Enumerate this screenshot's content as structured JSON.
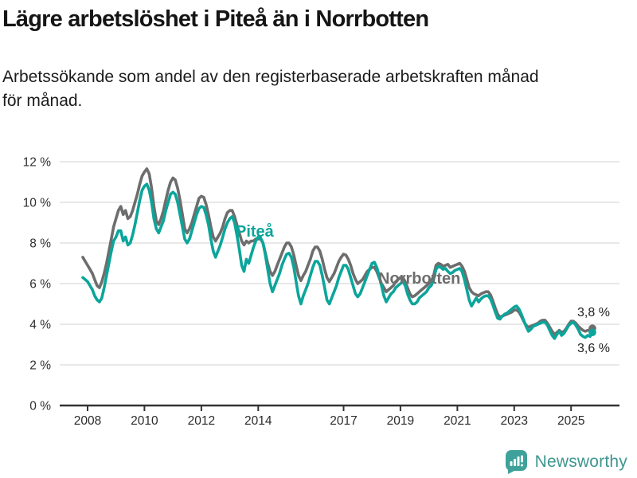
{
  "header": {
    "title": "Lägre arbetslöshet i Piteå än i Norrbotten",
    "subtitle_lines": [
      "Arbetssökande som andel av den registerbaserade arbetskraften månad",
      "för månad."
    ]
  },
  "footer": {
    "brand": "Newsworthy",
    "brand_color": "#3e968f"
  },
  "chart_data": {
    "type": "line",
    "title": "Lägre arbetslöshet i Piteå än i Norrbotten",
    "subtitle": "Arbetssökande som andel av den registerbaserade arbetskraften månad för månad.",
    "frequency": "monthly",
    "x_start": {
      "year": 2007,
      "month": 11
    },
    "x_end": {
      "year": 2025,
      "month": 10
    },
    "x_ticks": [
      2008,
      2010,
      2012,
      2014,
      2017,
      2019,
      2021,
      2023,
      2025
    ],
    "y_ticks": [
      0,
      2,
      4,
      6,
      8,
      10,
      12
    ],
    "y_tick_suffix": " %",
    "ylim": [
      0,
      12.5
    ],
    "grid": "horizontal",
    "legend_position": "inline-labels",
    "axis_color": "#333333",
    "gridline_color": "#dbdbdb",
    "series": [
      {
        "name": "Norrbotten",
        "color": "#6d6d6d",
        "end_label": "3,8 %",
        "end_value": 3.8,
        "values": [
          7.3,
          7.1,
          6.9,
          6.7,
          6.5,
          6.2,
          5.9,
          5.8,
          6.1,
          6.5,
          7.0,
          7.6,
          8.2,
          8.8,
          9.2,
          9.6,
          9.8,
          9.4,
          9.6,
          9.2,
          9.3,
          9.6,
          10.0,
          10.4,
          10.9,
          11.3,
          11.5,
          11.65,
          11.4,
          10.7,
          9.8,
          9.1,
          8.9,
          9.2,
          9.6,
          10.1,
          10.6,
          11.0,
          11.2,
          11.1,
          10.7,
          10.1,
          9.4,
          8.7,
          8.5,
          8.7,
          9.0,
          9.4,
          9.8,
          10.2,
          10.3,
          10.25,
          9.9,
          9.4,
          8.8,
          8.3,
          8.1,
          8.3,
          8.5,
          8.8,
          9.2,
          9.5,
          9.6,
          9.6,
          9.3,
          8.9,
          8.5,
          8.1,
          7.9,
          8.1,
          8.0,
          8.1,
          8.1,
          8.2,
          8.2,
          8.2,
          8.0,
          7.5,
          7.0,
          6.6,
          6.4,
          6.6,
          6.9,
          7.2,
          7.5,
          7.8,
          8.0,
          8.0,
          7.8,
          7.4,
          6.9,
          6.4,
          6.15,
          6.4,
          6.6,
          6.9,
          7.2,
          7.6,
          7.8,
          7.8,
          7.6,
          7.2,
          6.7,
          6.3,
          6.1,
          6.3,
          6.5,
          6.8,
          7.1,
          7.3,
          7.45,
          7.4,
          7.2,
          6.9,
          6.5,
          6.2,
          6.0,
          6.1,
          6.2,
          6.4,
          6.6,
          6.7,
          6.8,
          6.8,
          6.6,
          6.3,
          6.0,
          5.8,
          5.6,
          5.7,
          5.8,
          5.9,
          6.1,
          6.2,
          6.3,
          6.3,
          6.1,
          5.8,
          5.5,
          5.35,
          5.4,
          5.5,
          5.6,
          5.7,
          5.8,
          5.9,
          6.0,
          6.1,
          6.4,
          6.9,
          7.0,
          6.95,
          6.85,
          6.9,
          6.95,
          6.8,
          6.85,
          6.9,
          6.95,
          7.0,
          6.85,
          6.6,
          6.2,
          5.8,
          5.6,
          5.5,
          5.45,
          5.4,
          5.5,
          5.55,
          5.6,
          5.6,
          5.45,
          5.15,
          4.8,
          4.5,
          4.35,
          4.4,
          4.45,
          4.5,
          4.55,
          4.6,
          4.7,
          4.7,
          4.6,
          4.4,
          4.15,
          3.95,
          3.85,
          3.9,
          3.95,
          4.0,
          4.05,
          4.15,
          4.2,
          4.2,
          4.05,
          3.85,
          3.65,
          3.5,
          3.6,
          3.7,
          3.6,
          3.65,
          3.8,
          4.0,
          4.15,
          4.15,
          4.05,
          3.9,
          3.8,
          3.7,
          3.65,
          3.7,
          3.7,
          3.8
        ]
      },
      {
        "name": "Piteå",
        "color": "#0ba59b",
        "end_label": "3,6 %",
        "end_value": 3.6,
        "values": [
          6.3,
          6.2,
          6.1,
          5.9,
          5.7,
          5.4,
          5.2,
          5.1,
          5.3,
          5.8,
          6.4,
          7.0,
          7.6,
          8.1,
          8.3,
          8.6,
          8.6,
          8.1,
          8.3,
          7.9,
          8.0,
          8.4,
          8.9,
          9.5,
          10.1,
          10.6,
          10.8,
          10.9,
          10.6,
          10.0,
          9.2,
          8.7,
          8.5,
          8.8,
          9.1,
          9.6,
          10.0,
          10.4,
          10.5,
          10.4,
          10.0,
          9.4,
          8.8,
          8.2,
          8.0,
          8.2,
          8.6,
          9.0,
          9.4,
          9.7,
          9.8,
          9.75,
          9.4,
          8.9,
          8.2,
          7.6,
          7.3,
          7.6,
          7.9,
          8.3,
          8.7,
          9.0,
          9.2,
          9.3,
          9.0,
          8.4,
          7.7,
          6.9,
          6.6,
          7.2,
          7.0,
          7.4,
          7.8,
          8.1,
          8.3,
          8.25,
          8.0,
          7.4,
          6.7,
          6.0,
          5.6,
          5.9,
          6.2,
          6.5,
          6.9,
          7.2,
          7.45,
          7.5,
          7.3,
          6.8,
          6.1,
          5.4,
          5.0,
          5.4,
          5.7,
          6.0,
          6.4,
          6.8,
          7.1,
          7.1,
          6.9,
          6.4,
          5.8,
          5.2,
          5.0,
          5.3,
          5.6,
          5.9,
          6.3,
          6.6,
          6.9,
          6.9,
          6.7,
          6.3,
          5.9,
          5.5,
          5.35,
          5.5,
          5.8,
          6.1,
          6.4,
          6.7,
          7.0,
          7.05,
          6.8,
          6.4,
          5.9,
          5.4,
          5.1,
          5.3,
          5.5,
          5.6,
          5.8,
          5.9,
          6.0,
          6.1,
          5.9,
          5.5,
          5.2,
          5.0,
          5.0,
          5.1,
          5.3,
          5.4,
          5.5,
          5.6,
          5.8,
          5.9,
          6.2,
          6.7,
          6.85,
          6.8,
          6.7,
          6.75,
          6.6,
          6.5,
          6.55,
          6.65,
          6.7,
          6.75,
          6.6,
          6.2,
          5.7,
          5.2,
          4.9,
          5.1,
          5.3,
          5.1,
          5.25,
          5.35,
          5.4,
          5.4,
          5.25,
          4.95,
          4.6,
          4.3,
          4.25,
          4.4,
          4.5,
          4.55,
          4.65,
          4.75,
          4.85,
          4.9,
          4.75,
          4.5,
          4.2,
          3.9,
          3.65,
          3.75,
          3.9,
          3.95,
          4.0,
          4.05,
          4.1,
          4.1,
          3.95,
          3.7,
          3.45,
          3.3,
          3.5,
          3.65,
          3.45,
          3.55,
          3.75,
          3.95,
          4.05,
          4.1,
          3.95,
          3.75,
          3.5,
          3.4,
          3.35,
          3.45,
          3.4,
          3.6
        ]
      }
    ]
  }
}
